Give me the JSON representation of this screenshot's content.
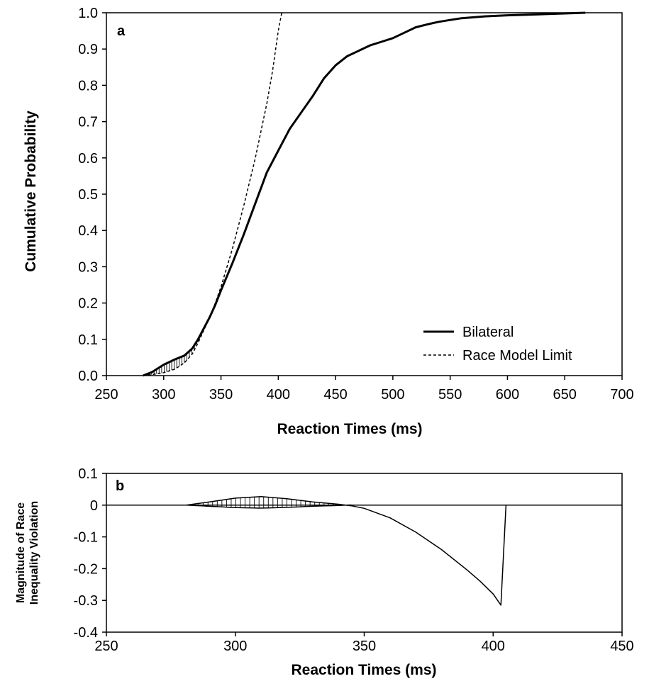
{
  "chart_data": [
    {
      "panel": "a",
      "type": "line",
      "xlabel": "Reaction Times (ms)",
      "ylabel": "Cumulative Probability",
      "xlim": [
        250,
        700
      ],
      "ylim": [
        0,
        1.0
      ],
      "xticks": [
        "250",
        "300",
        "350",
        "400",
        "450",
        "500",
        "550",
        "600",
        "650",
        "700"
      ],
      "yticks": [
        "0.0",
        "0.1",
        "0.2",
        "0.3",
        "0.4",
        "0.5",
        "0.6",
        "0.7",
        "0.8",
        "0.9",
        "1.0"
      ],
      "legend_position": "bottom-right",
      "series": [
        {
          "name": "Bilateral",
          "style": "solid",
          "x": [
            282,
            290,
            300,
            310,
            318,
            325,
            330,
            335,
            340,
            345,
            350,
            360,
            370,
            380,
            390,
            400,
            410,
            420,
            430,
            440,
            450,
            460,
            470,
            480,
            490,
            500,
            510,
            520,
            530,
            540,
            550,
            560,
            580,
            600,
            620,
            640,
            668
          ],
          "y": [
            0.0,
            0.01,
            0.03,
            0.045,
            0.055,
            0.075,
            0.1,
            0.13,
            0.16,
            0.195,
            0.235,
            0.31,
            0.39,
            0.475,
            0.56,
            0.62,
            0.68,
            0.725,
            0.77,
            0.82,
            0.855,
            0.88,
            0.895,
            0.91,
            0.92,
            0.93,
            0.945,
            0.96,
            0.968,
            0.975,
            0.98,
            0.985,
            0.99,
            0.993,
            0.995,
            0.997,
            1.0
          ]
        },
        {
          "name": "Race Model Limit",
          "style": "dashed",
          "x": [
            282,
            290,
            300,
            310,
            318,
            325,
            330,
            335,
            340,
            345,
            350,
            360,
            370,
            380,
            390,
            395,
            400,
            403
          ],
          "y": [
            0.0,
            0.003,
            0.008,
            0.018,
            0.035,
            0.06,
            0.09,
            0.125,
            0.16,
            0.2,
            0.245,
            0.35,
            0.47,
            0.6,
            0.75,
            0.84,
            0.95,
            1.0
          ]
        }
      ]
    },
    {
      "panel": "b",
      "type": "line",
      "xlabel": "Reaction Times (ms)",
      "ylabel": "Magnitude of Race Inequality Violation",
      "ylabel_lines": [
        "Magnitude of Race",
        "Inequality Violation"
      ],
      "xlim": [
        250,
        450
      ],
      "ylim": [
        -0.4,
        0.1
      ],
      "xticks": [
        "250",
        "300",
        "350",
        "400",
        "450"
      ],
      "yticks": [
        "0.1",
        "0",
        "-0.1",
        "-0.2",
        "-0.3",
        "-0.4"
      ],
      "series": [
        {
          "x": [
            281,
            290,
            300,
            310,
            320,
            330,
            340,
            345,
            350,
            360,
            370,
            380,
            390,
            395,
            400,
            403,
            405
          ],
          "y": [
            0.0,
            0.01,
            0.022,
            0.027,
            0.02,
            0.01,
            0.003,
            -0.002,
            -0.01,
            -0.04,
            -0.085,
            -0.14,
            -0.205,
            -0.24,
            -0.28,
            -0.315,
            0.0
          ]
        }
      ]
    }
  ]
}
